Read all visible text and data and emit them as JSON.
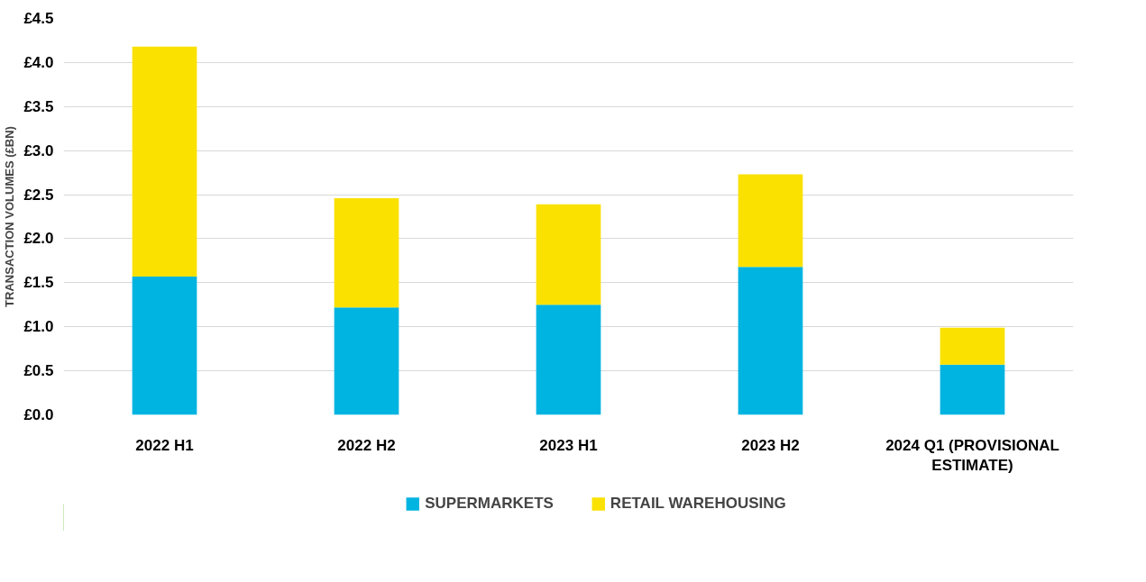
{
  "chart_data": {
    "type": "bar",
    "stacked": true,
    "ylabel": "TRANSACTION VOLUMES (£BN)",
    "categories": [
      "2022 H1",
      "2022 H2",
      "2023 H1",
      "2023 H2",
      "2024 Q1 (PROVISIONAL ESTIMATE)"
    ],
    "series": [
      {
        "name": "SUPERMARKETS",
        "color": "#00b4e1",
        "values": [
          1.57,
          1.22,
          1.25,
          1.68,
          0.57
        ]
      },
      {
        "name": "RETAIL WAREHOUSING",
        "color": "#fae100",
        "values": [
          2.61,
          1.24,
          1.14,
          1.05,
          0.42
        ]
      }
    ],
    "ylim": [
      0,
      4.5
    ],
    "yticks": [
      {
        "value": 0,
        "label": "£0.0"
      },
      {
        "value": 0.5,
        "label": "£0.5"
      },
      {
        "value": 1,
        "label": "£1.0"
      },
      {
        "value": 1.5,
        "label": "£1.5"
      },
      {
        "value": 2,
        "label": "£2.0"
      },
      {
        "value": 2.5,
        "label": "£2.5"
      },
      {
        "value": 3,
        "label": "£3.0"
      },
      {
        "value": 3.5,
        "label": "£3.5"
      },
      {
        "value": 4,
        "label": "£4.0"
      },
      {
        "value": 4.5,
        "label": "£4.5"
      }
    ],
    "grid": "y",
    "legend": "bottom"
  }
}
